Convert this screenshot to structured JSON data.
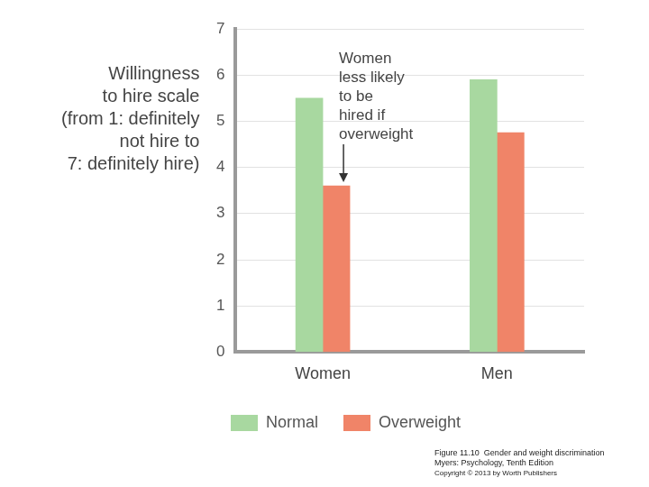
{
  "chart_data": {
    "type": "bar",
    "ylabel": [
      "Willingness",
      "to hire scale",
      "(from 1: definitely",
      "not hire to",
      "7: definitely hire)"
    ],
    "categories": [
      "Women",
      "Men"
    ],
    "series": [
      {
        "name": "Normal",
        "color": "#a8d8a0",
        "values": [
          5.5,
          5.9
        ]
      },
      {
        "name": "Overweight",
        "color": "#f08468",
        "values": [
          3.6,
          4.75
        ]
      }
    ],
    "ylim": [
      0,
      7
    ],
    "yticks": [
      0,
      1,
      2,
      3,
      4,
      5,
      6,
      7
    ],
    "grid": true,
    "legend": "bottom",
    "annotations": [
      {
        "text": [
          "Women",
          "less likely",
          "to be",
          "hired if",
          "overweight"
        ],
        "category": "Women",
        "series": "Overweight"
      }
    ],
    "caption": [
      "Figure 11.10  Gender and weight discrimination",
      "Myers: Psychology, Tenth Edition",
      "Copyright © 2013 by Worth Publishers"
    ]
  }
}
